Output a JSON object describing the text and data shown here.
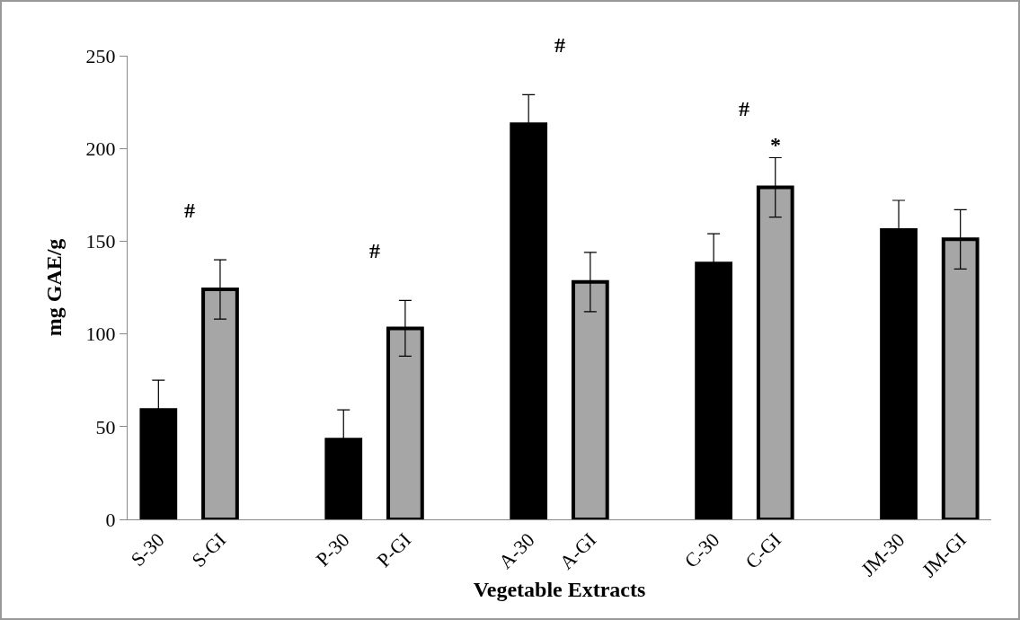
{
  "chart_data": {
    "type": "bar",
    "xlabel": "Vegetable Extracts",
    "ylabel": "mg GAE/g",
    "categories": [
      "S-30",
      "S-GI",
      null,
      "P-30",
      "P-GI",
      null,
      "A-30",
      "A-GI",
      null,
      "C-30",
      "C-GI",
      null,
      "JM-30",
      "JM-GI"
    ],
    "values": [
      59,
      124,
      null,
      43,
      103,
      null,
      213,
      128,
      null,
      138,
      179,
      null,
      156,
      151
    ],
    "colors": [
      "#000000",
      "#a6a6a6",
      "#ffffff",
      "#000000",
      "#a6a6a6",
      "#ffffff",
      "#000000",
      "#a6a6a6",
      "#ffffff",
      "#000000",
      "#a6a6a6",
      "#ffffff",
      "#000000",
      "#a6a6a6"
    ],
    "errors": [
      16,
      16,
      null,
      16,
      15,
      null,
      16,
      16,
      null,
      16,
      16,
      null,
      16,
      16
    ],
    "ylim": [
      0,
      250
    ],
    "yticks": [
      0,
      50,
      100,
      150,
      200,
      250
    ],
    "grid": false,
    "legend": false,
    "annotations": [
      "#",
      "#",
      "#",
      "#",
      {
        "text": "*",
        "x": "C-GI",
        "y": 195
      }
    ]
  }
}
